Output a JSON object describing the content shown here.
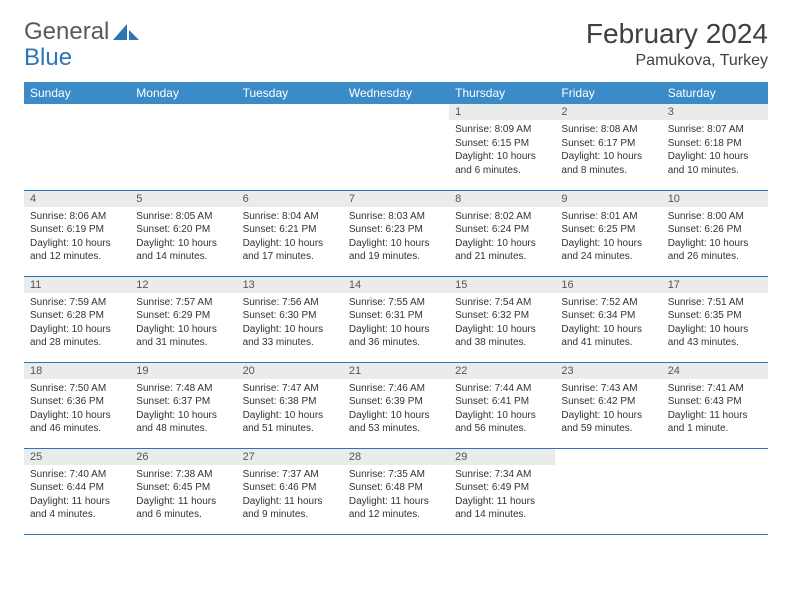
{
  "brand": {
    "word1": "General",
    "word2": "Blue",
    "word1_color": "#595959",
    "word2_color": "#2e75b6"
  },
  "title": "February 2024",
  "location": "Pamukova, Turkey",
  "day_headers": [
    "Sunday",
    "Monday",
    "Tuesday",
    "Wednesday",
    "Thursday",
    "Friday",
    "Saturday"
  ],
  "header_bg": "#3b8bc8",
  "header_fg": "#ffffff",
  "daynum_bg": "#e9eceb",
  "row_border_color": "#2e75b6",
  "weeks": [
    [
      {
        "num": "",
        "lines": []
      },
      {
        "num": "",
        "lines": []
      },
      {
        "num": "",
        "lines": []
      },
      {
        "num": "",
        "lines": []
      },
      {
        "num": "1",
        "lines": [
          "Sunrise: 8:09 AM",
          "Sunset: 6:15 PM",
          "Daylight: 10 hours",
          "and 6 minutes."
        ]
      },
      {
        "num": "2",
        "lines": [
          "Sunrise: 8:08 AM",
          "Sunset: 6:17 PM",
          "Daylight: 10 hours",
          "and 8 minutes."
        ]
      },
      {
        "num": "3",
        "lines": [
          "Sunrise: 8:07 AM",
          "Sunset: 6:18 PM",
          "Daylight: 10 hours",
          "and 10 minutes."
        ]
      }
    ],
    [
      {
        "num": "4",
        "lines": [
          "Sunrise: 8:06 AM",
          "Sunset: 6:19 PM",
          "Daylight: 10 hours",
          "and 12 minutes."
        ]
      },
      {
        "num": "5",
        "lines": [
          "Sunrise: 8:05 AM",
          "Sunset: 6:20 PM",
          "Daylight: 10 hours",
          "and 14 minutes."
        ]
      },
      {
        "num": "6",
        "lines": [
          "Sunrise: 8:04 AM",
          "Sunset: 6:21 PM",
          "Daylight: 10 hours",
          "and 17 minutes."
        ]
      },
      {
        "num": "7",
        "lines": [
          "Sunrise: 8:03 AM",
          "Sunset: 6:23 PM",
          "Daylight: 10 hours",
          "and 19 minutes."
        ]
      },
      {
        "num": "8",
        "lines": [
          "Sunrise: 8:02 AM",
          "Sunset: 6:24 PM",
          "Daylight: 10 hours",
          "and 21 minutes."
        ]
      },
      {
        "num": "9",
        "lines": [
          "Sunrise: 8:01 AM",
          "Sunset: 6:25 PM",
          "Daylight: 10 hours",
          "and 24 minutes."
        ]
      },
      {
        "num": "10",
        "lines": [
          "Sunrise: 8:00 AM",
          "Sunset: 6:26 PM",
          "Daylight: 10 hours",
          "and 26 minutes."
        ]
      }
    ],
    [
      {
        "num": "11",
        "lines": [
          "Sunrise: 7:59 AM",
          "Sunset: 6:28 PM",
          "Daylight: 10 hours",
          "and 28 minutes."
        ]
      },
      {
        "num": "12",
        "lines": [
          "Sunrise: 7:57 AM",
          "Sunset: 6:29 PM",
          "Daylight: 10 hours",
          "and 31 minutes."
        ]
      },
      {
        "num": "13",
        "lines": [
          "Sunrise: 7:56 AM",
          "Sunset: 6:30 PM",
          "Daylight: 10 hours",
          "and 33 minutes."
        ]
      },
      {
        "num": "14",
        "lines": [
          "Sunrise: 7:55 AM",
          "Sunset: 6:31 PM",
          "Daylight: 10 hours",
          "and 36 minutes."
        ]
      },
      {
        "num": "15",
        "lines": [
          "Sunrise: 7:54 AM",
          "Sunset: 6:32 PM",
          "Daylight: 10 hours",
          "and 38 minutes."
        ]
      },
      {
        "num": "16",
        "lines": [
          "Sunrise: 7:52 AM",
          "Sunset: 6:34 PM",
          "Daylight: 10 hours",
          "and 41 minutes."
        ]
      },
      {
        "num": "17",
        "lines": [
          "Sunrise: 7:51 AM",
          "Sunset: 6:35 PM",
          "Daylight: 10 hours",
          "and 43 minutes."
        ]
      }
    ],
    [
      {
        "num": "18",
        "lines": [
          "Sunrise: 7:50 AM",
          "Sunset: 6:36 PM",
          "Daylight: 10 hours",
          "and 46 minutes."
        ]
      },
      {
        "num": "19",
        "lines": [
          "Sunrise: 7:48 AM",
          "Sunset: 6:37 PM",
          "Daylight: 10 hours",
          "and 48 minutes."
        ]
      },
      {
        "num": "20",
        "lines": [
          "Sunrise: 7:47 AM",
          "Sunset: 6:38 PM",
          "Daylight: 10 hours",
          "and 51 minutes."
        ]
      },
      {
        "num": "21",
        "lines": [
          "Sunrise: 7:46 AM",
          "Sunset: 6:39 PM",
          "Daylight: 10 hours",
          "and 53 minutes."
        ]
      },
      {
        "num": "22",
        "lines": [
          "Sunrise: 7:44 AM",
          "Sunset: 6:41 PM",
          "Daylight: 10 hours",
          "and 56 minutes."
        ]
      },
      {
        "num": "23",
        "lines": [
          "Sunrise: 7:43 AM",
          "Sunset: 6:42 PM",
          "Daylight: 10 hours",
          "and 59 minutes."
        ]
      },
      {
        "num": "24",
        "lines": [
          "Sunrise: 7:41 AM",
          "Sunset: 6:43 PM",
          "Daylight: 11 hours",
          "and 1 minute."
        ]
      }
    ],
    [
      {
        "num": "25",
        "lines": [
          "Sunrise: 7:40 AM",
          "Sunset: 6:44 PM",
          "Daylight: 11 hours",
          "and 4 minutes."
        ]
      },
      {
        "num": "26",
        "lines": [
          "Sunrise: 7:38 AM",
          "Sunset: 6:45 PM",
          "Daylight: 11 hours",
          "and 6 minutes."
        ]
      },
      {
        "num": "27",
        "lines": [
          "Sunrise: 7:37 AM",
          "Sunset: 6:46 PM",
          "Daylight: 11 hours",
          "and 9 minutes."
        ]
      },
      {
        "num": "28",
        "lines": [
          "Sunrise: 7:35 AM",
          "Sunset: 6:48 PM",
          "Daylight: 11 hours",
          "and 12 minutes."
        ]
      },
      {
        "num": "29",
        "lines": [
          "Sunrise: 7:34 AM",
          "Sunset: 6:49 PM",
          "Daylight: 11 hours",
          "and 14 minutes."
        ]
      },
      {
        "num": "",
        "lines": []
      },
      {
        "num": "",
        "lines": []
      }
    ]
  ]
}
